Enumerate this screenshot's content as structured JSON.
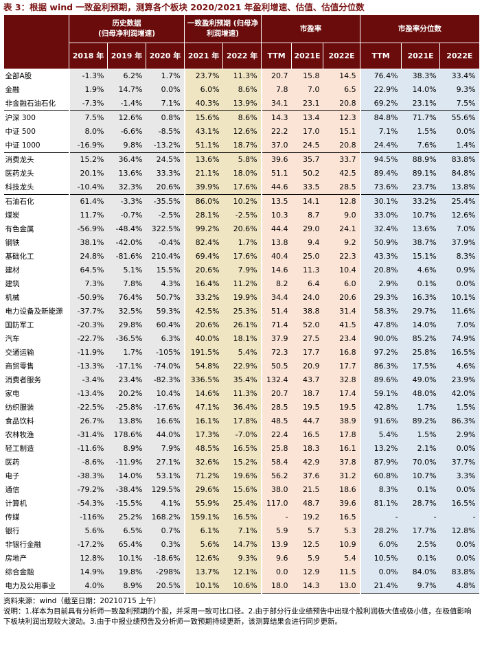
{
  "title": "表 3：根据 wind 一致盈利预期，测算各个板块 2020/2021 年盈利增速、估值、估值分位数",
  "table": {
    "header": {
      "groups": [
        {
          "label": "历史数据",
          "sublabel": "(归母净利润增速)"
        },
        {
          "label": "一致盈利预期 (归母净利润增速)"
        },
        {
          "label": "市盈率"
        },
        {
          "label": "市盈率分位数"
        }
      ],
      "columns": [
        "2018 年",
        "2019 年",
        "2020 年",
        "2021 年",
        "2022 年",
        "TTM",
        "2021E",
        "2022E",
        "TTM",
        "2021E",
        "2022E"
      ]
    },
    "groups": [
      {
        "rows": [
          {
            "name": "全部A股",
            "values": [
              "-1.3%",
              "6.2%",
              "1.7%",
              "23.7%",
              "11.3%",
              "20.7",
              "15.8",
              "14.5",
              "76.4%",
              "38.3%",
              "33.4%"
            ]
          },
          {
            "name": "金融",
            "values": [
              "1.9%",
              "14.7%",
              "0.0%",
              "6.0%",
              "8.6%",
              "7.8",
              "7.0",
              "6.5",
              "22.9%",
              "14.0%",
              "9.3%"
            ]
          },
          {
            "name": "非金融石油石化",
            "values": [
              "-7.3%",
              "-1.4%",
              "7.1%",
              "40.3%",
              "13.9%",
              "34.1",
              "23.1",
              "20.8",
              "69.2%",
              "23.1%",
              "7.5%"
            ]
          }
        ]
      },
      {
        "rows": [
          {
            "name": "沪深 300",
            "values": [
              "7.5%",
              "12.6%",
              "0.8%",
              "15.6%",
              "8.6%",
              "14.3",
              "13.4",
              "12.3",
              "84.8%",
              "71.7%",
              "55.6%"
            ]
          },
          {
            "name": "中证 500",
            "values": [
              "8.0%",
              "-6.6%",
              "-8.5%",
              "43.1%",
              "12.6%",
              "22.2",
              "17.0",
              "15.1",
              "7.1%",
              "1.5%",
              "0.0%"
            ]
          },
          {
            "name": "中证 1000",
            "values": [
              "-16.9%",
              "9.8%",
              "-13.2%",
              "51.1%",
              "18.7%",
              "37.0",
              "24.5",
              "20.8",
              "24.4%",
              "7.6%",
              "1.4%"
            ]
          }
        ]
      },
      {
        "rows": [
          {
            "name": "消费龙头",
            "values": [
              "15.2%",
              "36.4%",
              "24.5%",
              "13.6%",
              "5.8%",
              "39.6",
              "35.7",
              "33.7",
              "94.5%",
              "88.9%",
              "83.8%"
            ]
          },
          {
            "name": "医药龙头",
            "values": [
              "20.1%",
              "13.6%",
              "33.3%",
              "21.1%",
              "18.0%",
              "51.1",
              "50.2",
              "42.5",
              "89.4%",
              "89.1%",
              "84.8%"
            ]
          },
          {
            "name": "科技龙头",
            "values": [
              "-10.4%",
              "32.3%",
              "20.6%",
              "39.9%",
              "17.6%",
              "44.6",
              "33.5",
              "28.5",
              "73.6%",
              "23.7%",
              "13.8%"
            ]
          }
        ]
      },
      {
        "rows": [
          {
            "name": "石油石化",
            "values": [
              "61.4%",
              "-3.3%",
              "-35.5%",
              "86.0%",
              "10.2%",
              "13.5",
              "14.1",
              "12.8",
              "30.1%",
              "33.2%",
              "25.4%"
            ]
          },
          {
            "name": "煤炭",
            "values": [
              "11.7%",
              "-0.7%",
              "-2.5%",
              "28.1%",
              "-2.5%",
              "10.3",
              "8.7",
              "9.0",
              "33.0%",
              "10.7%",
              "12.6%"
            ]
          },
          {
            "name": "有色金属",
            "values": [
              "-56.9%",
              "-48.4%",
              "322.5%",
              "99.2%",
              "20.6%",
              "44.4",
              "29.0",
              "24.1",
              "32.4%",
              "13.6%",
              "7.0%"
            ]
          },
          {
            "name": "钢铁",
            "values": [
              "38.1%",
              "-42.0%",
              "-0.4%",
              "82.4%",
              "1.7%",
              "13.8",
              "9.4",
              "9.2",
              "50.9%",
              "38.7%",
              "37.9%"
            ]
          },
          {
            "name": "基础化工",
            "values": [
              "24.8%",
              "-81.6%",
              "210.4%",
              "69.4%",
              "17.6%",
              "40.4",
              "25.0",
              "22.3",
              "43.3%",
              "15.1%",
              "8.3%"
            ]
          },
          {
            "name": "建材",
            "values": [
              "64.5%",
              "5.1%",
              "15.5%",
              "20.6%",
              "7.9%",
              "14.6",
              "11.3",
              "10.4",
              "20.8%",
              "4.6%",
              "0.9%"
            ]
          },
          {
            "name": "建筑",
            "values": [
              "7.3%",
              "7.8%",
              "4.3%",
              "16.4%",
              "11.2%",
              "8.2",
              "6.4",
              "6.0",
              "2.9%",
              "0.1%",
              "0.0%"
            ]
          },
          {
            "name": "机械",
            "values": [
              "-50.9%",
              "76.4%",
              "50.7%",
              "33.2%",
              "19.9%",
              "34.4",
              "24.0",
              "20.6",
              "29.3%",
              "16.3%",
              "10.1%"
            ]
          },
          {
            "name": "电力设备及新能源",
            "values": [
              "-37.7%",
              "32.5%",
              "59.3%",
              "42.5%",
              "25.3%",
              "51.4",
              "38.8",
              "31.4",
              "58.3%",
              "29.7%",
              "11.6%"
            ]
          },
          {
            "name": "国防军工",
            "values": [
              "-20.3%",
              "29.8%",
              "60.4%",
              "20.6%",
              "26.1%",
              "71.4",
              "52.0",
              "41.5",
              "47.8%",
              "14.0%",
              "7.0%"
            ]
          },
          {
            "name": "汽车",
            "values": [
              "-22.7%",
              "-36.5%",
              "6.3%",
              "40.0%",
              "18.1%",
              "37.9",
              "27.5",
              "23.4",
              "90.0%",
              "85.2%",
              "74.9%"
            ]
          },
          {
            "name": "交通运输",
            "values": [
              "-11.9%",
              "1.7%",
              "-105%",
              "191.5%",
              "5.4%",
              "72.3",
              "17.7",
              "16.8",
              "97.2%",
              "25.8%",
              "16.5%"
            ]
          },
          {
            "name": "商贸零售",
            "values": [
              "-13.3%",
              "-17.1%",
              "-74.0%",
              "54.8%",
              "22.9%",
              "50.5",
              "20.9",
              "17.7",
              "86.3%",
              "17.5%",
              "4.6%"
            ]
          },
          {
            "name": "消费者服务",
            "values": [
              "-3.4%",
              "23.4%",
              "-82.3%",
              "336.5%",
              "35.4%",
              "132.4",
              "43.7",
              "32.8",
              "89.6%",
              "49.0%",
              "23.9%"
            ]
          },
          {
            "name": "家电",
            "values": [
              "-13.4%",
              "20.2%",
              "10.4%",
              "14.6%",
              "11.3%",
              "20.7",
              "18.7",
              "17.4",
              "59.1%",
              "48.0%",
              "42.0%"
            ]
          },
          {
            "name": "纺织服装",
            "values": [
              "-22.5%",
              "-25.8%",
              "-17.6%",
              "47.1%",
              "36.4%",
              "28.5",
              "19.5",
              "19.5",
              "42.8%",
              "1.7%",
              "1.5%"
            ]
          },
          {
            "name": "食品饮料",
            "values": [
              "26.7%",
              "13.8%",
              "16.6%",
              "16.1%",
              "17.8%",
              "48.5",
              "44.7",
              "38.9",
              "91.6%",
              "89.2%",
              "86.3%"
            ]
          },
          {
            "name": "农林牧渔",
            "values": [
              "-31.4%",
              "178.6%",
              "44.0%",
              "17.3%",
              "-7.0%",
              "22.4",
              "16.5",
              "17.8",
              "5.4%",
              "1.5%",
              "2.9%"
            ]
          },
          {
            "name": "轻工制造",
            "values": [
              "-11.6%",
              "8.9%",
              "7.9%",
              "48.5%",
              "16.5%",
              "25.8",
              "18.3",
              "16.1",
              "13.2%",
              "2.1%",
              "0.0%"
            ]
          },
          {
            "name": "医药",
            "values": [
              "-8.6%",
              "-11.9%",
              "27.1%",
              "32.6%",
              "15.2%",
              "58.4",
              "42.9",
              "37.8",
              "87.9%",
              "70.0%",
              "37.7%"
            ]
          },
          {
            "name": "电子",
            "values": [
              "-38.3%",
              "14.0%",
              "53.1%",
              "71.2%",
              "19.6%",
              "56.2",
              "37.6",
              "31.2",
              "60.8%",
              "10.7%",
              "3.3%"
            ]
          },
          {
            "name": "通信",
            "values": [
              "-79.2%",
              "-38.4%",
              "129.5%",
              "29.6%",
              "15.6%",
              "38.0",
              "21.5",
              "18.6",
              "8.3%",
              "0.1%",
              "0.0%"
            ]
          },
          {
            "name": "计算机",
            "values": [
              "-54.3%",
              "-15.5%",
              "4.1%",
              "55.9%",
              "25.4%",
              "117.0",
              "48.7",
              "39.6",
              "81.1%",
              "28.7%",
              "16.5%"
            ]
          },
          {
            "name": "传媒",
            "values": [
              "-116%",
              "25.2%",
              "168.2%",
              "159.1%",
              "16.5%",
              "-",
              "19.2",
              "16.5",
              "-",
              "-",
              "-"
            ]
          },
          {
            "name": "银行",
            "values": [
              "5.6%",
              "6.5%",
              "0.7%",
              "6.1%",
              "7.1%",
              "5.9",
              "5.7",
              "5.3",
              "28.2%",
              "17.7%",
              "12.8%"
            ]
          },
          {
            "name": "非银行金融",
            "values": [
              "-17.2%",
              "65.4%",
              "0.3%",
              "5.6%",
              "14.7%",
              "13.9",
              "12.5",
              "10.9",
              "6.0%",
              "2.5%",
              "0.0%"
            ]
          },
          {
            "name": "房地产",
            "values": [
              "12.8%",
              "10.1%",
              "-18.6%",
              "12.6%",
              "9.3%",
              "9.6",
              "5.9",
              "5.4",
              "10.5%",
              "0.1%",
              "0.0%"
            ]
          },
          {
            "name": "综合金融",
            "values": [
              "14.9%",
              "19.8%",
              "-298%",
              "13.7%",
              "12.1%",
              "0.0",
              "12.9",
              "11.5",
              "0.0%",
              "84.0%",
              "83.8%"
            ]
          },
          {
            "name": "电力及公用事业",
            "values": [
              "4.0%",
              "8.9%",
              "20.5%",
              "10.1%",
              "10.6%",
              "18.0",
              "14.3",
              "13.0",
              "21.4%",
              "9.7%",
              "4.8%"
            ]
          }
        ]
      }
    ]
  },
  "footer": {
    "source": "资料来源：wind（截至日期：20210715 上午）",
    "note": "说明：1.样本为目前具有分析师一致盈利预期的个股，并采用一致可比口径。2.由于部分行业业绩预告中出现个股利润极大值或极小值，在极值影响下板块利润出现较大波动。3.由于中报业绩预告及分析师一致预期持续更新，该测算结果会进行同步更新。"
  }
}
